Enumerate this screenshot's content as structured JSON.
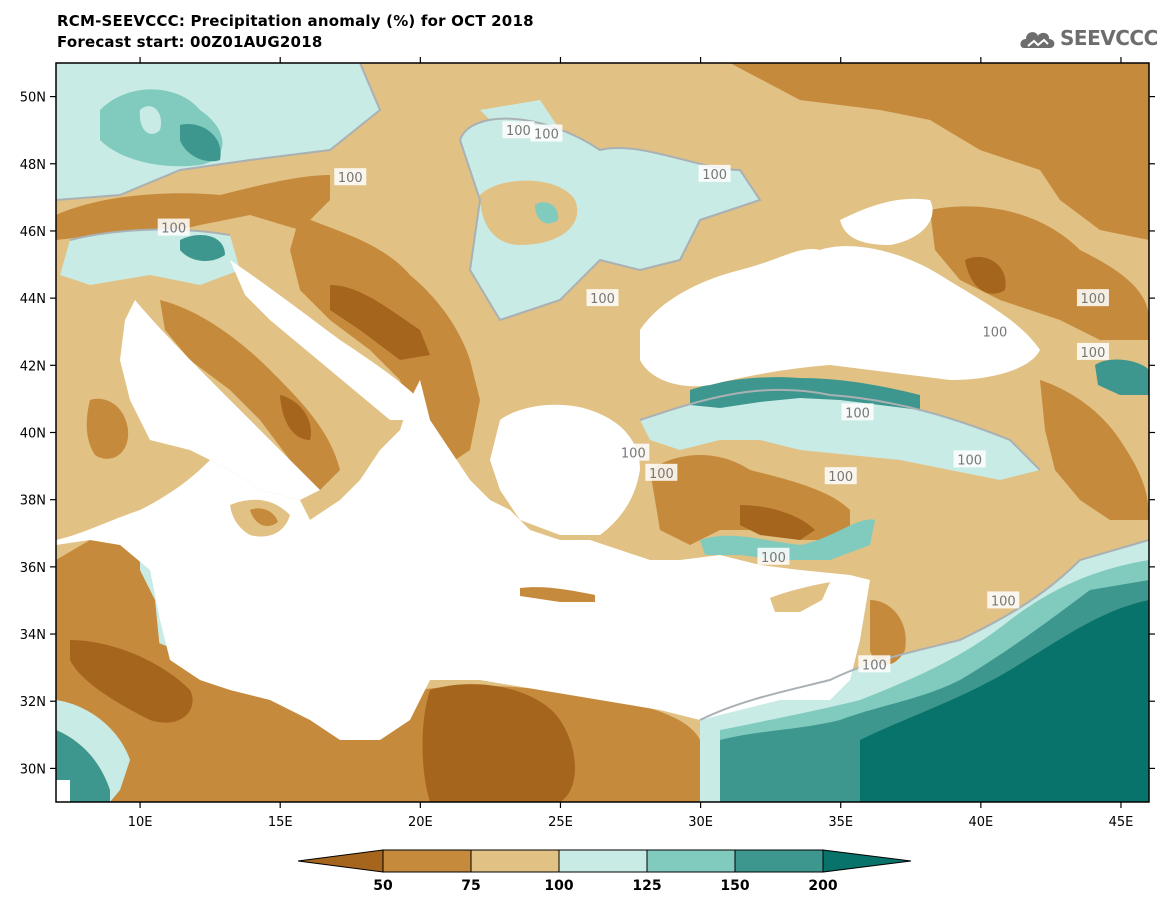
{
  "header": {
    "title": "RCM-SEEVCCC: Precipitation anomaly (%) for OCT 2018",
    "subtitle": "Forecast start: 00Z01AUG2018"
  },
  "logo": {
    "text": "SEEVCCC",
    "icon": "cloud-logo-icon"
  },
  "map": {
    "lon_range": [
      7,
      46
    ],
    "lat_range": [
      29,
      51
    ],
    "lon_ticks": [
      10,
      15,
      20,
      25,
      30,
      35,
      40,
      45
    ],
    "lat_ticks": [
      30,
      32,
      34,
      36,
      38,
      40,
      42,
      44,
      46,
      48,
      50
    ],
    "lon_tick_labels": [
      "10E",
      "15E",
      "20E",
      "25E",
      "30E",
      "35E",
      "40E",
      "45E"
    ],
    "lat_tick_labels": [
      "30N",
      "32N",
      "34N",
      "36N",
      "38N",
      "40N",
      "42N",
      "44N",
      "46N",
      "48N",
      "50N"
    ],
    "contour_label": "100",
    "contour_labels": [
      {
        "lon": 11.2,
        "lat": 46.1,
        "text": "100"
      },
      {
        "lon": 17.5,
        "lat": 47.6,
        "text": "100"
      },
      {
        "lon": 23.5,
        "lat": 49.0,
        "text": "100"
      },
      {
        "lon": 24.5,
        "lat": 48.9,
        "text": "100"
      },
      {
        "lon": 30.5,
        "lat": 47.7,
        "text": "100"
      },
      {
        "lon": 26.5,
        "lat": 44.0,
        "text": "100"
      },
      {
        "lon": 40.5,
        "lat": 43.0,
        "text": "100"
      },
      {
        "lon": 44.0,
        "lat": 44.0,
        "text": "100"
      },
      {
        "lon": 44.0,
        "lat": 42.4,
        "text": "100"
      },
      {
        "lon": 35.6,
        "lat": 40.6,
        "text": "100"
      },
      {
        "lon": 39.6,
        "lat": 39.2,
        "text": "100"
      },
      {
        "lon": 35.0,
        "lat": 38.7,
        "text": "100"
      },
      {
        "lon": 27.6,
        "lat": 39.4,
        "text": "100"
      },
      {
        "lon": 28.6,
        "lat": 38.8,
        "text": "100"
      },
      {
        "lon": 32.6,
        "lat": 36.3,
        "text": "100"
      },
      {
        "lon": 40.8,
        "lat": 35.0,
        "text": "100"
      },
      {
        "lon": 36.2,
        "lat": 33.1,
        "text": "100"
      }
    ]
  },
  "legend": {
    "levels": [
      "50",
      "75",
      "100",
      "125",
      "150",
      "200"
    ],
    "colors": [
      "#a5651c",
      "#c68a3d",
      "#e1c184",
      "#c9ebe5",
      "#80cbbe",
      "#3e978f",
      "#08736a"
    ]
  },
  "colors": {
    "ocean": "#ffffff",
    "dark_brown": "#a5651c",
    "brown": "#c68a3d",
    "tan": "#e1c184",
    "light_cyan": "#c9ebe5",
    "teal": "#80cbbe",
    "dark_teal": "#3e978f",
    "deep_teal": "#08736a",
    "contour_line": "#a9b1b4"
  }
}
